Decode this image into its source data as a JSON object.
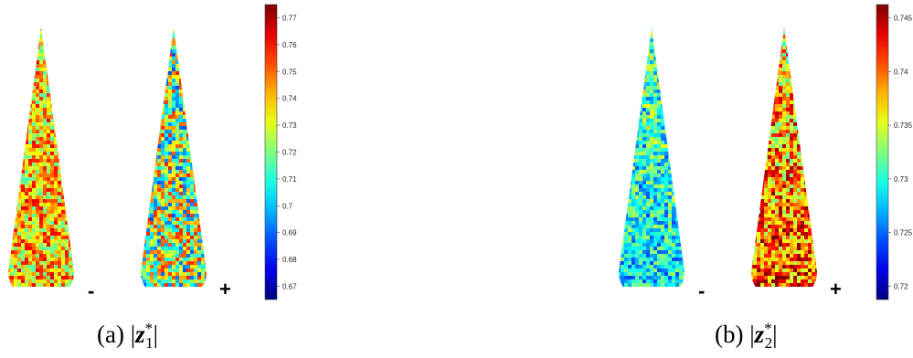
{
  "panels": [
    {
      "id": "a",
      "caption": {
        "prefix": "(a)",
        "variable": "z",
        "subscript": "1",
        "superscript": "*"
      },
      "minus_label": "-",
      "plus_label": "+",
      "colorbar": {
        "ticks": [
          "0.77",
          "0.76",
          "0.75",
          "0.74",
          "0.73",
          "0.72",
          "0.71",
          "0.7",
          "0.69",
          "0.68",
          "0.67"
        ]
      },
      "left_cone_tone": "warm",
      "right_cone_tone": "mixed"
    },
    {
      "id": "b",
      "caption": {
        "prefix": "(b)",
        "variable": "z",
        "subscript": "2",
        "superscript": "*"
      },
      "minus_label": "-",
      "plus_label": "+",
      "colorbar": {
        "ticks": [
          "0.745",
          "0.74",
          "0.735",
          "0.73",
          "0.725",
          "0.72"
        ]
      },
      "left_cone_tone": "cool",
      "right_cone_tone": "hot"
    }
  ],
  "colormap": "jet"
}
